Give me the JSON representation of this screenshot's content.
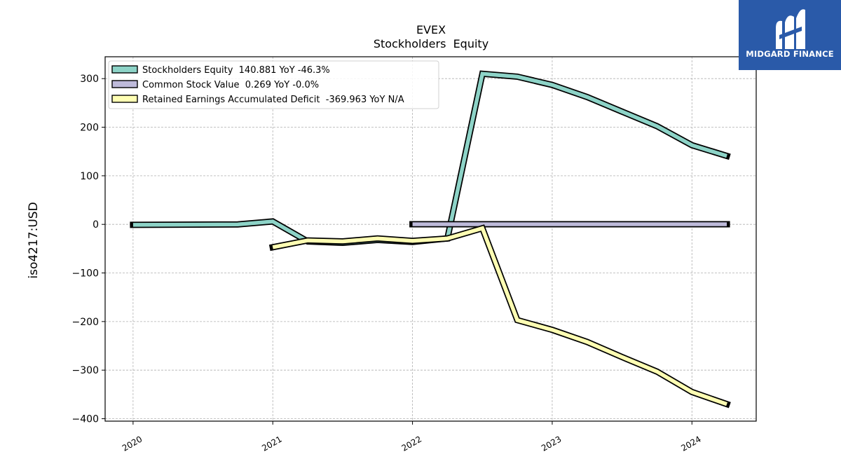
{
  "logo": {
    "text": "MIDGARD FINANCE",
    "background": "#2a5aa9"
  },
  "chart_data": {
    "type": "line",
    "title": "EVEX",
    "subtitle": "Stockholders  Equity",
    "xlabel": "",
    "ylabel": "iso4217:USD",
    "xlim": [
      2019.8,
      2024.46
    ],
    "ylim": [
      -405,
      345
    ],
    "yticks": [
      -400,
      -300,
      -200,
      -100,
      0,
      100,
      200,
      300
    ],
    "ytick_labels": [
      "−400",
      "−300",
      "−200",
      "−100",
      "0",
      "100",
      "200",
      "300"
    ],
    "xticks": [
      2020,
      2021,
      2022,
      2023,
      2024
    ],
    "xtick_labels": [
      "2020",
      "2021",
      "2022",
      "2023",
      "2024"
    ],
    "grid": true,
    "legend_position": "top-left",
    "series": [
      {
        "name": "Stockholders Equity",
        "legend_label": "Stockholders Equity  140.881 YoY -46.3%",
        "color": "#8dd3c7",
        "x": [
          2020.0,
          2020.75,
          2021.0,
          2021.25,
          2021.5,
          2021.75,
          2022.0,
          2022.25,
          2022.5,
          2022.75,
          2023.0,
          2023.25,
          2023.5,
          2023.75,
          2024.0,
          2024.25
        ],
        "y": [
          -1,
          0,
          6,
          -35,
          -38,
          -32,
          -36,
          -29,
          310,
          304,
          287,
          262,
          232,
          202,
          163,
          140.881
        ]
      },
      {
        "name": "Common Stock Value",
        "legend_label": "Common Stock Value  0.269 YoY -0.0%",
        "color": "#bebada",
        "x": [
          2022.0,
          2024.25
        ],
        "y": [
          0.269,
          0.269
        ]
      },
      {
        "name": "Retained Earnings Accumulated Deficit",
        "legend_label": "Retained Earnings Accumulated Deficit  -369.963 YoY N/A",
        "color": "#ffffb3",
        "x": [
          2021.0,
          2021.25,
          2021.5,
          2021.75,
          2022.0,
          2022.25,
          2022.5,
          2022.75,
          2023.0,
          2023.25,
          2023.5,
          2023.75,
          2024.0,
          2024.25
        ],
        "y": [
          -47,
          -33,
          -35,
          -29,
          -34,
          -29,
          -8,
          -197,
          -217,
          -242,
          -273,
          -303,
          -345,
          -369.963
        ]
      }
    ]
  }
}
